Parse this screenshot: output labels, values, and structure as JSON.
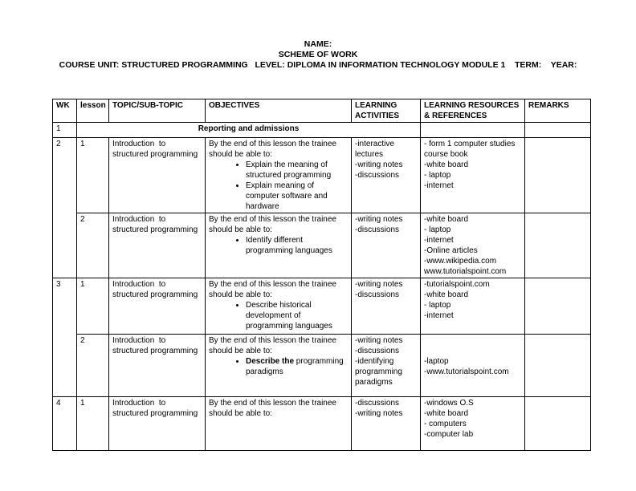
{
  "header": {
    "line1": "NAME:",
    "line2": "SCHEME OF WORK",
    "line3": "COURSE UNIT: STRUCTURED PROGRAMMING   LEVEL: DIPLOMA IN INFORMATION TECHNOLOGY MODULE 1    TERM:    YEAR:"
  },
  "table": {
    "headers": [
      "WK",
      "lesson",
      "TOPIC/SUB-TOPIC",
      "OBJECTIVES",
      "LEARNING ACTIVITIES",
      "LEARNING RESOURCES & REFERENCES",
      "REMARKS"
    ],
    "rows": [
      {
        "type": "section",
        "wk": "1",
        "label": "Reporting and admissions",
        "remarks": ""
      },
      {
        "type": "lesson",
        "wk": "2",
        "wk_rowspan": 2,
        "lesson": "1",
        "topic": "Introduction  to structured programming",
        "objectives": {
          "intro": "By the end of this lesson the trainee should be able to:",
          "bullets": [
            {
              "text": "Explain the meaning of structured programming"
            },
            {
              "text": "Explain meaning of computer software and hardware"
            }
          ]
        },
        "activities": [
          "-interactive lectures",
          "-writing notes",
          "-discussions"
        ],
        "resources": [
          "- form 1 computer studies course book",
          "-white board",
          "- laptop",
          "-internet"
        ],
        "remarks": ""
      },
      {
        "type": "lesson",
        "lesson": "2",
        "topic": "Introduction  to structured programming",
        "objectives": {
          "intro": "By the end of this lesson the trainee should be able to:",
          "bullets": [
            {
              "text": "Identify different programming languages"
            }
          ]
        },
        "activities": [
          "-writing notes",
          "-discussions"
        ],
        "resources": [
          "-white board",
          "- laptop",
          "-internet",
          "-Online articles",
          "-www.wikipedia.com",
          "www.tutorialspoint.com"
        ],
        "remarks": ""
      },
      {
        "type": "lesson",
        "wk": "3",
        "wk_rowspan": 2,
        "lesson": "1",
        "topic": "Introduction  to structured programming",
        "objectives": {
          "intro": "By the end of this lesson the trainee should be able to:",
          "bullets": [
            {
              "text": "Describe historical development of programming languages"
            }
          ]
        },
        "activities": [
          "-writing notes",
          "-discussions"
        ],
        "resources": [
          "-tutorialspoint.com",
          "-white board",
          "- laptop",
          "-internet"
        ],
        "remarks": ""
      },
      {
        "type": "lesson",
        "lesson": "2",
        "topic": "Introduction  to structured programming",
        "objectives": {
          "intro": "By the end of this lesson the trainee should be able to:",
          "bullets": [
            {
              "bold": "Describe the",
              "text": " programming paradigms"
            }
          ]
        },
        "activities": [
          "-writing notes",
          "-discussions",
          "-identifying programming paradigms"
        ],
        "resources": [
          "-laptop",
          "-www.tutorialspoint.com"
        ],
        "resources_gap": true,
        "remarks": ""
      },
      {
        "type": "lesson",
        "wk": "4",
        "lesson": "1",
        "topic": "Introduction  to structured programming",
        "objectives": {
          "intro": "By the end of this lesson the trainee should be able to:",
          "bullets": []
        },
        "activities": [
          "-discussions",
          "-writing notes"
        ],
        "resources": [
          "-windows O.S",
          "-white board",
          "- computers",
          "-computer lab"
        ],
        "remarks": ""
      }
    ]
  }
}
